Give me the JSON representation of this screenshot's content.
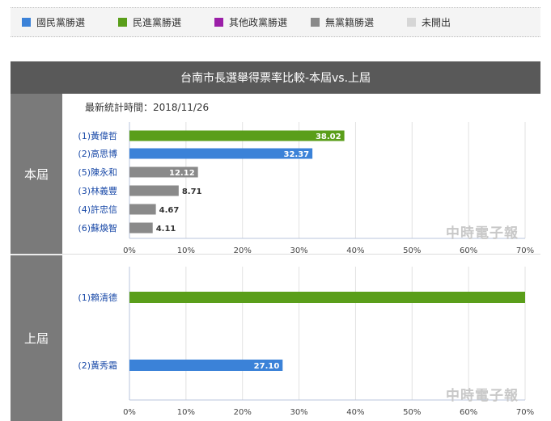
{
  "legend": [
    {
      "label": "國民黨勝選",
      "color": "#3b82d8"
    },
    {
      "label": "民進黨勝選",
      "color": "#5a9e1a"
    },
    {
      "label": "其他政黨勝選",
      "color": "#9b1fa8"
    },
    {
      "label": "無黨籍勝選",
      "color": "#8a8a8a"
    },
    {
      "label": "未開出",
      "color": "#d6d6d6"
    }
  ],
  "header": {
    "title": "台南市長選舉得票率比較-本屆vs.上屆"
  },
  "sections": {
    "current": "本屆",
    "previous": "上屆"
  },
  "updated_label": "最新統計時間：2018/11/26",
  "watermark": "中時電子報",
  "chart_data": [
    {
      "type": "bar",
      "orientation": "horizontal",
      "categories": [
        "(1)黃偉哲",
        "(2)高思博",
        "(5)陳永和",
        "(3)林義豐",
        "(4)許忠信",
        "(6)蘇煥智"
      ],
      "values": [
        38.02,
        32.37,
        12.12,
        8.71,
        4.67,
        4.11
      ],
      "value_labels": [
        "38.02",
        "32.37",
        "12.12",
        "8.71",
        "4.67",
        "4.11"
      ],
      "colors": [
        "#5a9e1a",
        "#3b82d8",
        "#8a8a8a",
        "#8a8a8a",
        "#8a8a8a",
        "#8a8a8a"
      ],
      "xlim": [
        0,
        70
      ],
      "ticks": [
        "0%",
        "10%",
        "20%",
        "30%",
        "40%",
        "50%",
        "60%",
        "70%"
      ],
      "grid": true
    },
    {
      "type": "bar",
      "orientation": "horizontal",
      "categories": [
        "(1)賴清德",
        "(2)黃秀霜"
      ],
      "values": [
        72.9,
        27.1
      ],
      "value_labels": [
        "",
        "27.10"
      ],
      "colors": [
        "#5a9e1a",
        "#3b82d8"
      ],
      "xlim": [
        0,
        70
      ],
      "ticks": [
        "0%",
        "10%",
        "20%",
        "30%",
        "40%",
        "50%",
        "60%",
        "70%"
      ],
      "grid": true
    }
  ]
}
